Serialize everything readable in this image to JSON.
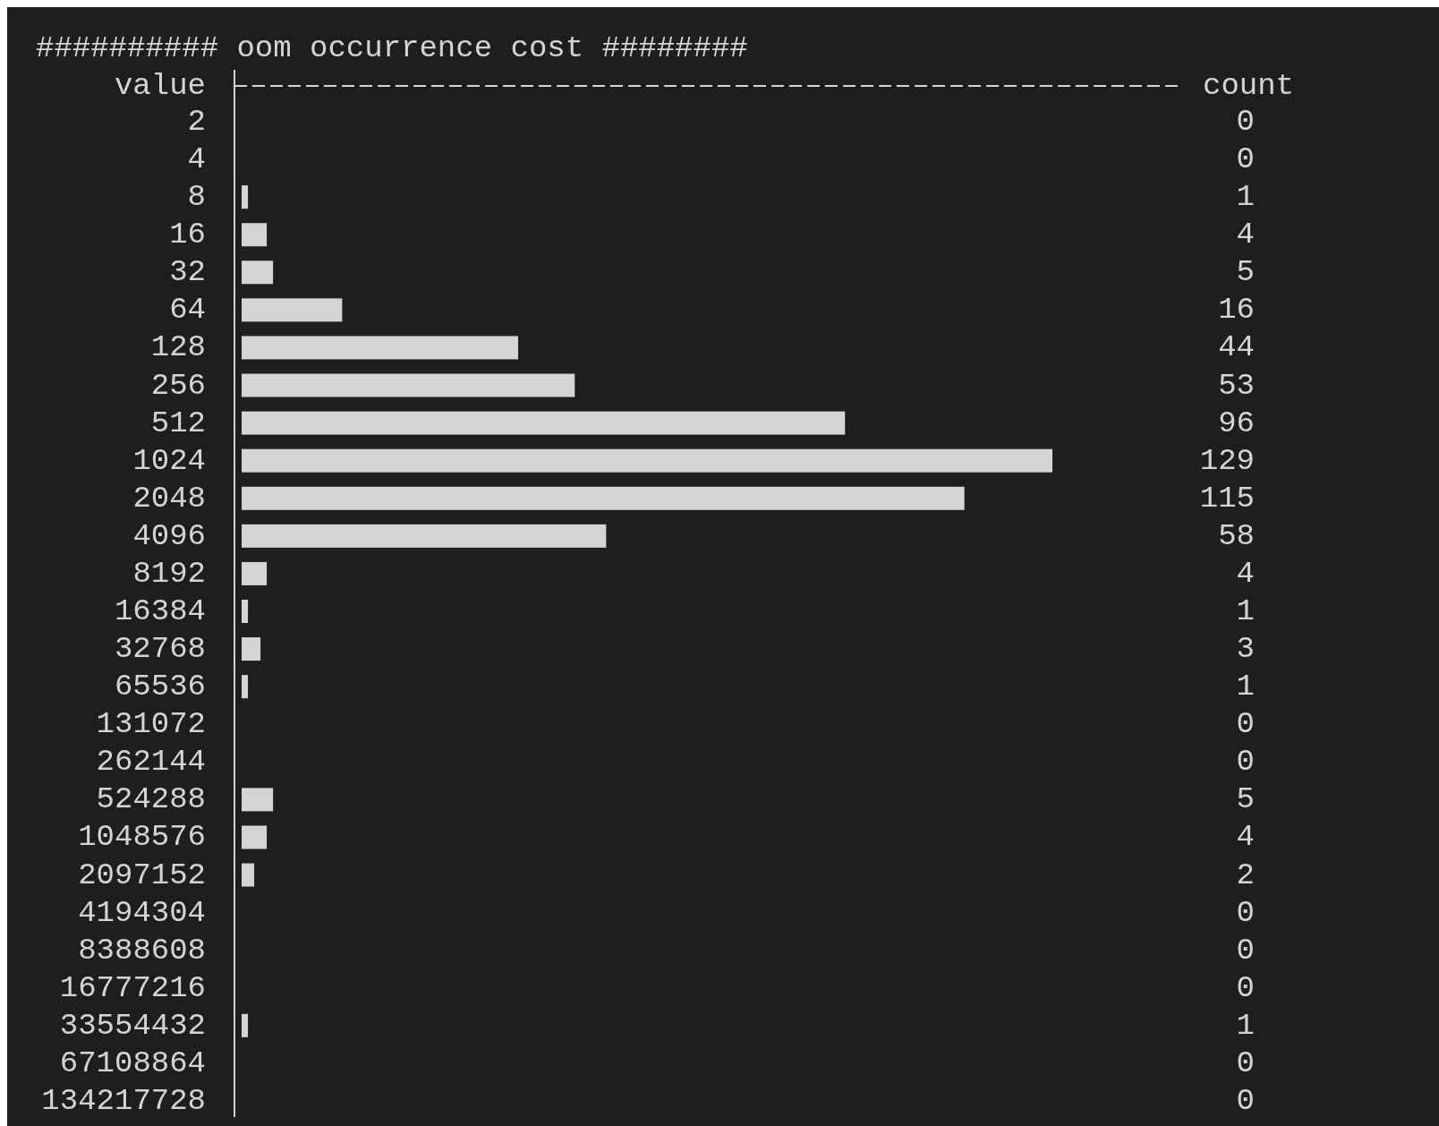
{
  "chart_data": {
    "type": "bar",
    "orientation": "horizontal",
    "title": "########## oom occurrence cost ########",
    "ylabel": "value",
    "xlabel": "count",
    "categories": [
      "2",
      "4",
      "8",
      "16",
      "32",
      "64",
      "128",
      "256",
      "512",
      "1024",
      "2048",
      "4096",
      "8192",
      "16384",
      "32768",
      "65536",
      "131072",
      "262144",
      "524288",
      "1048576",
      "2097152",
      "4194304",
      "8388608",
      "16777216",
      "33554432",
      "67108864",
      "134217728"
    ],
    "values": [
      0,
      0,
      1,
      4,
      5,
      16,
      44,
      53,
      96,
      129,
      115,
      58,
      4,
      1,
      3,
      1,
      0,
      0,
      5,
      4,
      2,
      0,
      0,
      0,
      1,
      0,
      0
    ],
    "color": "#d4d4d4",
    "data_labels": true
  }
}
